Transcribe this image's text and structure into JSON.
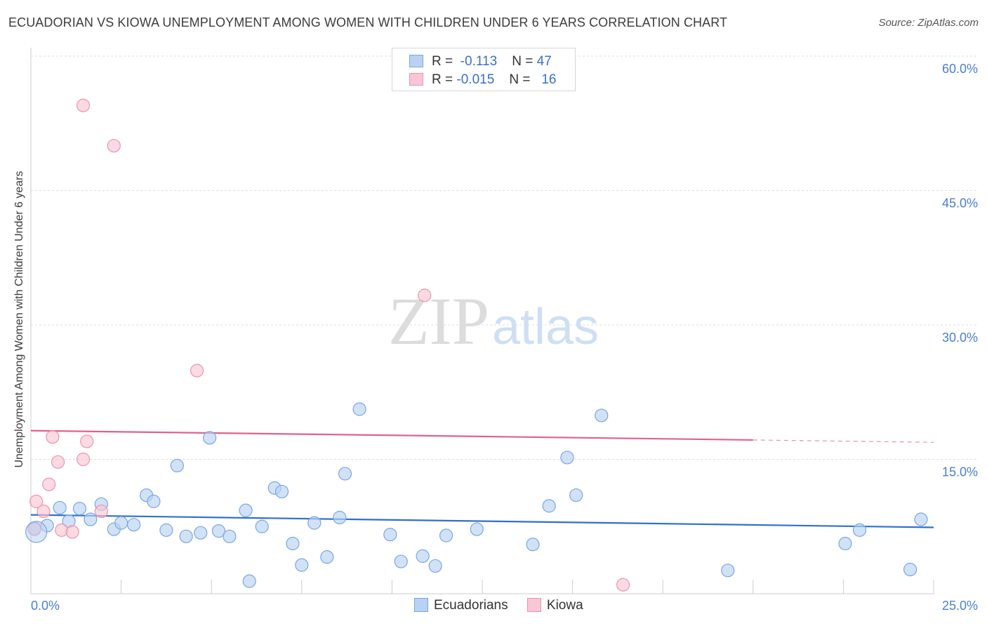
{
  "title": "ECUADORIAN VS KIOWA UNEMPLOYMENT AMONG WOMEN WITH CHILDREN UNDER 6 YEARS CORRELATION CHART",
  "source": "Source: ZipAtlas.com",
  "watermark": {
    "zip": "ZIP",
    "atlas": "atlas"
  },
  "colors": {
    "blue_fill": "#b9d2f3",
    "blue_stroke": "#7aa6e0",
    "blue_line": "#2f6fce",
    "pink_fill": "#f8c6d4",
    "pink_stroke": "#ee93ad",
    "pink_line": "#e0628a",
    "grid": "#dddddd",
    "tick_label": "#4a7fd0"
  },
  "legend": {
    "rows": [
      {
        "r_label": "R =",
        "r_value": "-0.113",
        "n_label": "N =",
        "n_value": "47"
      },
      {
        "r_label": "R =",
        "r_value": "-0.015",
        "n_label": "N =",
        "n_value": "16"
      }
    ]
  },
  "chart_data": {
    "type": "scatter",
    "title": "ECUADORIAN VS KIOWA UNEMPLOYMENT AMONG WOMEN WITH CHILDREN UNDER 6 YEARS CORRELATION CHART",
    "xlabel": "",
    "ylabel": "Unemployment Among Women with Children Under 6 years",
    "xlim": [
      0,
      25
    ],
    "ylim": [
      0,
      60
    ],
    "x_tick_labels": [
      "0.0%",
      "25.0%"
    ],
    "y_ticks": [
      15,
      30,
      45,
      60
    ],
    "y_tick_labels": [
      "15.0%",
      "30.0%",
      "45.0%",
      "60.0%"
    ],
    "grid": true,
    "legend_position": "bottom",
    "series": [
      {
        "name": "Ecuadorians",
        "color": "blue",
        "trend": {
          "x0": 0,
          "y0": 8.8,
          "x1": 25,
          "y1": 7.4,
          "dashed_from": 25
        },
        "points": [
          [
            0.1,
            7.3
          ],
          [
            0.45,
            7.6
          ],
          [
            0.8,
            9.6
          ],
          [
            1.05,
            8.1
          ],
          [
            1.35,
            9.5
          ],
          [
            1.65,
            8.3
          ],
          [
            1.95,
            10.0
          ],
          [
            2.3,
            7.2
          ],
          [
            2.5,
            7.9
          ],
          [
            2.85,
            7.7
          ],
          [
            3.2,
            11.0
          ],
          [
            3.4,
            10.3
          ],
          [
            3.75,
            7.1
          ],
          [
            4.05,
            14.3
          ],
          [
            4.3,
            6.4
          ],
          [
            4.7,
            6.8
          ],
          [
            4.95,
            17.4
          ],
          [
            5.2,
            7.0
          ],
          [
            5.5,
            6.4
          ],
          [
            5.95,
            9.3
          ],
          [
            6.05,
            1.4
          ],
          [
            6.4,
            7.5
          ],
          [
            6.75,
            11.8
          ],
          [
            6.95,
            11.4
          ],
          [
            7.25,
            5.6
          ],
          [
            7.5,
            3.2
          ],
          [
            7.85,
            7.9
          ],
          [
            8.2,
            4.1
          ],
          [
            8.55,
            8.5
          ],
          [
            8.7,
            13.4
          ],
          [
            9.1,
            20.6
          ],
          [
            9.95,
            6.6
          ],
          [
            10.25,
            3.6
          ],
          [
            10.85,
            4.2
          ],
          [
            11.2,
            3.1
          ],
          [
            11.5,
            6.5
          ],
          [
            12.35,
            7.2
          ],
          [
            13.9,
            5.5
          ],
          [
            14.35,
            9.8
          ],
          [
            14.85,
            15.2
          ],
          [
            15.1,
            11.0
          ],
          [
            15.8,
            19.9
          ],
          [
            19.3,
            2.6
          ],
          [
            22.55,
            5.6
          ],
          [
            22.95,
            7.1
          ],
          [
            24.35,
            2.7
          ],
          [
            24.65,
            8.3
          ]
        ]
      },
      {
        "name": "Kiowa",
        "color": "pink",
        "trend": {
          "x0": 0,
          "y0": 18.2,
          "x1": 25,
          "y1": 16.9,
          "dashed_from": 20
        },
        "points": [
          [
            0.15,
            10.3
          ],
          [
            0.35,
            9.2
          ],
          [
            0.5,
            12.2
          ],
          [
            0.6,
            17.5
          ],
          [
            0.75,
            14.7
          ],
          [
            0.85,
            7.1
          ],
          [
            1.15,
            6.9
          ],
          [
            1.45,
            15.0
          ],
          [
            1.55,
            17.0
          ],
          [
            1.95,
            9.2
          ],
          [
            1.45,
            54.5
          ],
          [
            2.3,
            50.0
          ],
          [
            4.6,
            24.9
          ],
          [
            10.9,
            33.3
          ],
          [
            16.4,
            1.0
          ],
          [
            0.1,
            7.2
          ]
        ]
      }
    ]
  },
  "bottom_legend": {
    "items": [
      "Ecuadorians",
      "Kiowa"
    ]
  }
}
